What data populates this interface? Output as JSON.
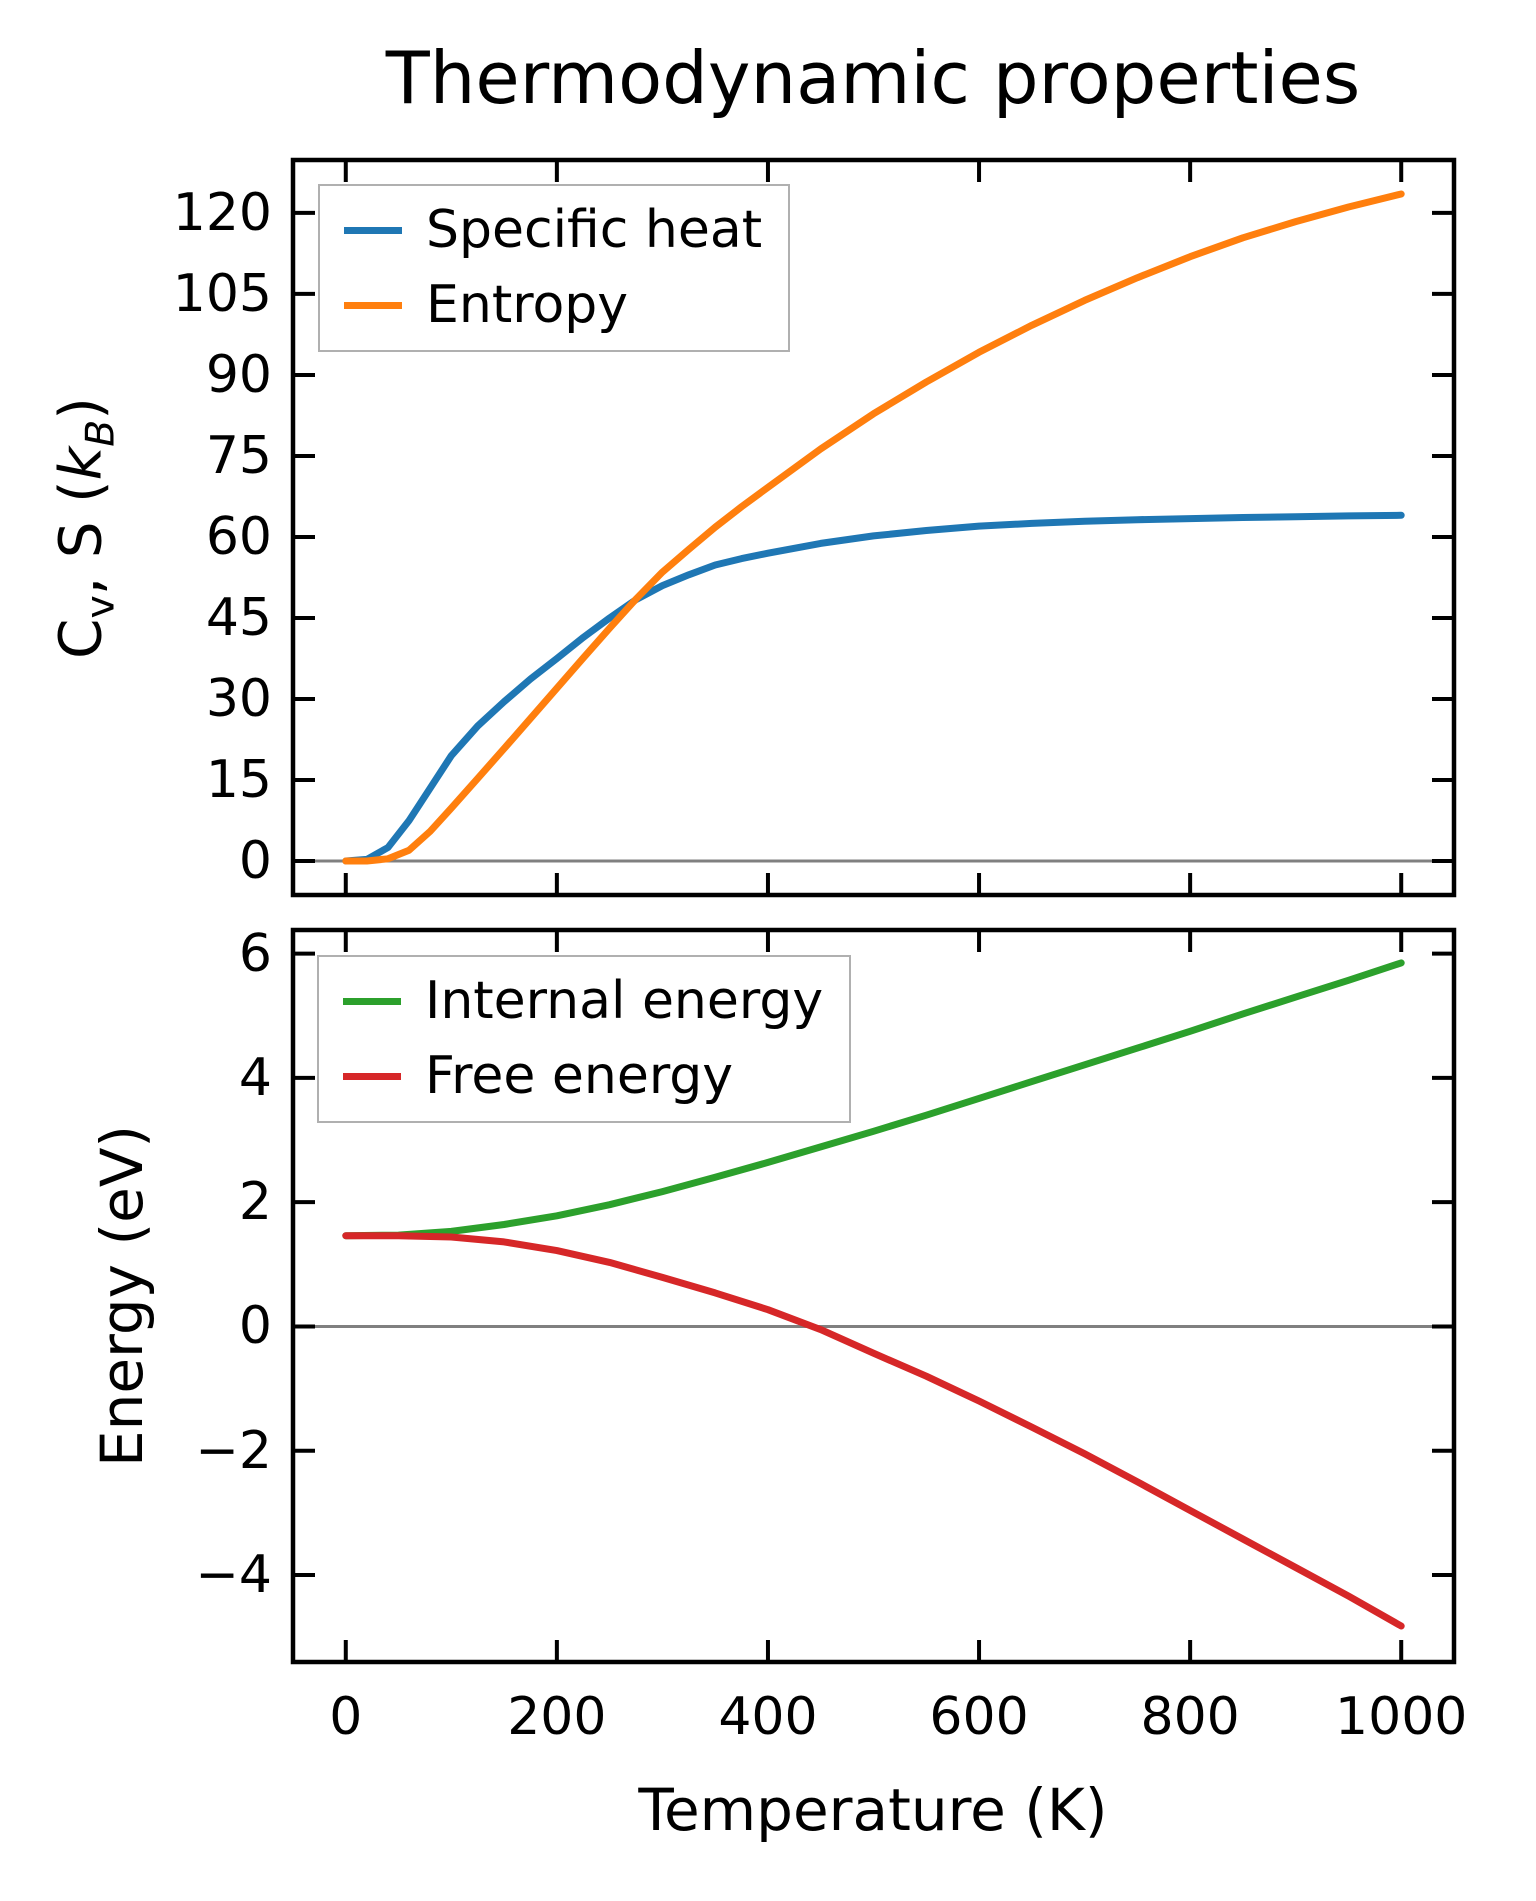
{
  "figure": {
    "title": "Thermodynamic properties",
    "xlabel": "Temperature (K)"
  },
  "top_plot": {
    "ylabel_parts": {
      "base1": "C",
      "sub1": "v",
      "mid": ", S (",
      "base2": "k",
      "sub2": "B",
      "close": ")"
    }
  },
  "bottom_plot": {
    "ylabel": "Energy (eV)"
  },
  "colors": {
    "specific_heat": "#1f77b4",
    "entropy": "#ff7f0e",
    "internal_energy": "#2ca02c",
    "free_energy": "#d62728",
    "zero_line": "#808080",
    "spine": "#000000",
    "legend_border": "#b0b0b0"
  },
  "chart_data": [
    {
      "type": "line",
      "position": "top",
      "ylabel_plain": "Cv, S (kB)",
      "xlim": [
        -50,
        1050
      ],
      "ylim": [
        -6.3,
        129.8
      ],
      "xticks": [
        0,
        200,
        400,
        600,
        800,
        1000
      ],
      "yticks": [
        0,
        15,
        30,
        45,
        60,
        75,
        90,
        105,
        120
      ],
      "x_tick_labels_visible": false,
      "grid": false,
      "zero_line": true,
      "legend_position": "upper left",
      "series": [
        {
          "name": "Specific heat",
          "slug": "specific-heat",
          "color": "#1f77b4",
          "x": [
            0,
            20,
            40,
            60,
            80,
            100,
            125,
            150,
            175,
            200,
            225,
            250,
            275,
            300,
            325,
            350,
            375,
            400,
            450,
            500,
            550,
            600,
            650,
            700,
            750,
            800,
            850,
            900,
            950,
            1000
          ],
          "y": [
            0,
            0.3,
            2.5,
            7.5,
            13.5,
            19.5,
            25,
            29.5,
            33.7,
            37.5,
            41.4,
            45,
            48.4,
            51,
            53,
            54.8,
            56,
            57,
            58.8,
            60.2,
            61.2,
            62,
            62.5,
            62.9,
            63.2,
            63.4,
            63.6,
            63.75,
            63.9,
            64
          ]
        },
        {
          "name": "Entropy",
          "slug": "entropy",
          "color": "#ff7f0e",
          "x": [
            0,
            20,
            40,
            60,
            80,
            100,
            125,
            150,
            175,
            200,
            225,
            250,
            275,
            300,
            325,
            350,
            375,
            400,
            450,
            500,
            550,
            600,
            650,
            700,
            750,
            800,
            850,
            900,
            950,
            1000
          ],
          "y": [
            0,
            0,
            0.4,
            2,
            5.5,
            9.8,
            15.3,
            20.8,
            26.4,
            32,
            37.6,
            43.1,
            48.5,
            53.5,
            57.7,
            61.8,
            65.6,
            69.2,
            76.3,
            82.8,
            88.7,
            94.2,
            99.2,
            103.8,
            108,
            111.9,
            115.4,
            118.4,
            121.1,
            123.5
          ]
        }
      ]
    },
    {
      "type": "line",
      "position": "bottom",
      "ylabel_plain": "Energy (eV)",
      "xlim": [
        -50,
        1050
      ],
      "ylim": [
        -5.4,
        6.38
      ],
      "xticks": [
        0,
        200,
        400,
        600,
        800,
        1000
      ],
      "yticks": [
        -4,
        -2,
        0,
        2,
        4,
        6
      ],
      "x_tick_labels_visible": true,
      "grid": false,
      "zero_line": true,
      "legend_position": "upper left",
      "series": [
        {
          "name": "Internal energy",
          "slug": "internal-energy",
          "color": "#2ca02c",
          "x": [
            0,
            50,
            100,
            150,
            200,
            250,
            300,
            350,
            400,
            450,
            500,
            550,
            600,
            650,
            700,
            750,
            800,
            850,
            900,
            950,
            1000
          ],
          "y": [
            1.46,
            1.47,
            1.53,
            1.64,
            1.78,
            1.96,
            2.17,
            2.4,
            2.64,
            2.89,
            3.14,
            3.4,
            3.67,
            3.94,
            4.21,
            4.48,
            4.75,
            5.03,
            5.3,
            5.57,
            5.85
          ]
        },
        {
          "name": "Free energy",
          "slug": "free-energy",
          "color": "#d62728",
          "x": [
            0,
            50,
            100,
            150,
            200,
            250,
            300,
            350,
            400,
            450,
            500,
            550,
            600,
            650,
            700,
            750,
            800,
            850,
            900,
            950,
            1000
          ],
          "y": [
            1.46,
            1.46,
            1.44,
            1.36,
            1.22,
            1.03,
            0.79,
            0.54,
            0.27,
            -0.05,
            -0.43,
            -0.8,
            -1.2,
            -1.62,
            -2.05,
            -2.5,
            -2.96,
            -3.42,
            -3.88,
            -4.34,
            -4.82
          ]
        }
      ]
    }
  ]
}
